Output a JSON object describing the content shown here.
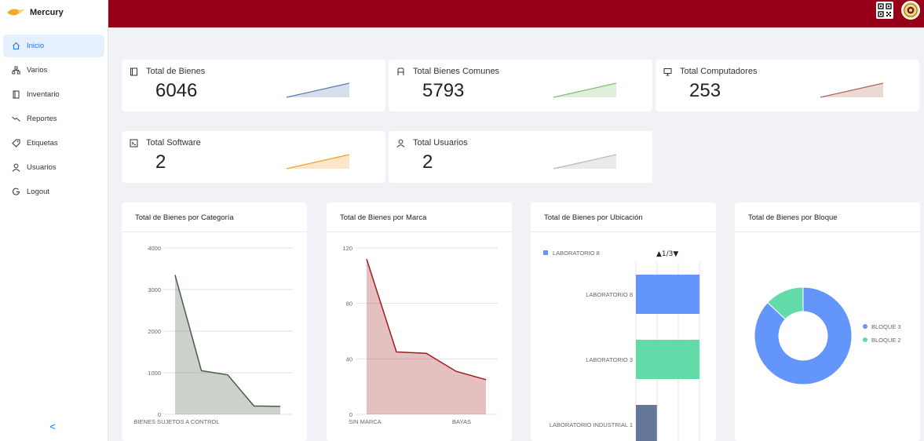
{
  "app": {
    "name": "Mercury"
  },
  "sidebar": {
    "items": [
      {
        "label": "Inicio",
        "icon": "home-icon",
        "active": true
      },
      {
        "label": "Varios",
        "icon": "sitemap-icon"
      },
      {
        "label": "Inventario",
        "icon": "book-icon"
      },
      {
        "label": "Reportes",
        "icon": "trend-icon"
      },
      {
        "label": "Etiquetas",
        "icon": "tag-icon"
      },
      {
        "label": "Usuarios",
        "icon": "user-icon"
      },
      {
        "label": "Logout",
        "icon": "logout-icon"
      }
    ],
    "collapse_label": "<"
  },
  "stats": [
    {
      "title": "Total de Bienes",
      "value": "6046",
      "icon": "book-icon",
      "color": "#5b7bb5"
    },
    {
      "title": "Total Bienes Comunes",
      "value": "5793",
      "icon": "seat-icon",
      "color": "#7fbf6f"
    },
    {
      "title": "Total Computadores",
      "value": "253",
      "icon": "computer-icon",
      "color": "#b0665a"
    },
    {
      "title": "Total Software",
      "value": "2",
      "icon": "terminal-icon",
      "color": "#f0a020"
    },
    {
      "title": "Total Usuarios",
      "value": "2",
      "icon": "user-icon",
      "color": "#b9b9b9"
    }
  ],
  "charts": {
    "categoria_title": "Total de Bienes por Categoría",
    "marca_title": "Total de Bienes por Marca",
    "ubicacion_title": "Total de Bienes por Ubicación",
    "bloque_title": "Total de Bienes por Bloque",
    "ubicacion_legend": "LABORATORIO 8",
    "ubicacion_pager": "▲1/3▼",
    "bloque_legend": [
      "BLOQUE 3",
      "BLOQUE 2"
    ]
  },
  "chart_data": [
    {
      "type": "area",
      "title": "Total de Bienes por Categoría",
      "ylim": [
        0,
        4000
      ],
      "yticks": [
        0,
        1000,
        2000,
        3000,
        4000
      ],
      "x_labels": [
        "BIENES SUJETOS A CONTROL"
      ],
      "values": [
        3350,
        1050,
        950,
        200,
        190
      ],
      "color": "#4a5a48"
    },
    {
      "type": "area",
      "title": "Total de Bienes por Marca",
      "ylim": [
        0,
        120
      ],
      "yticks": [
        0,
        40,
        80,
        120
      ],
      "x_labels": [
        "SIN MARCA",
        "BAYAS"
      ],
      "values": [
        112,
        45,
        44,
        31,
        25
      ],
      "color": "#a01c1c"
    },
    {
      "type": "bar",
      "title": "Total de Bienes por Ubicación",
      "categories": [
        "LABORATORIO 8",
        "LABORATORIO 3",
        "LABORATORIO  INDUSTRIAL 1"
      ],
      "values": [
        100,
        100,
        33
      ],
      "colors": [
        "#6495fa",
        "#62dba8",
        "#65789a"
      ]
    },
    {
      "type": "pie",
      "title": "Total de Bienes por Bloque",
      "labels": [
        "BLOQUE 3",
        "BLOQUE 2"
      ],
      "values": [
        87,
        13
      ],
      "colors": [
        "#6495fa",
        "#62dba8"
      ]
    }
  ]
}
